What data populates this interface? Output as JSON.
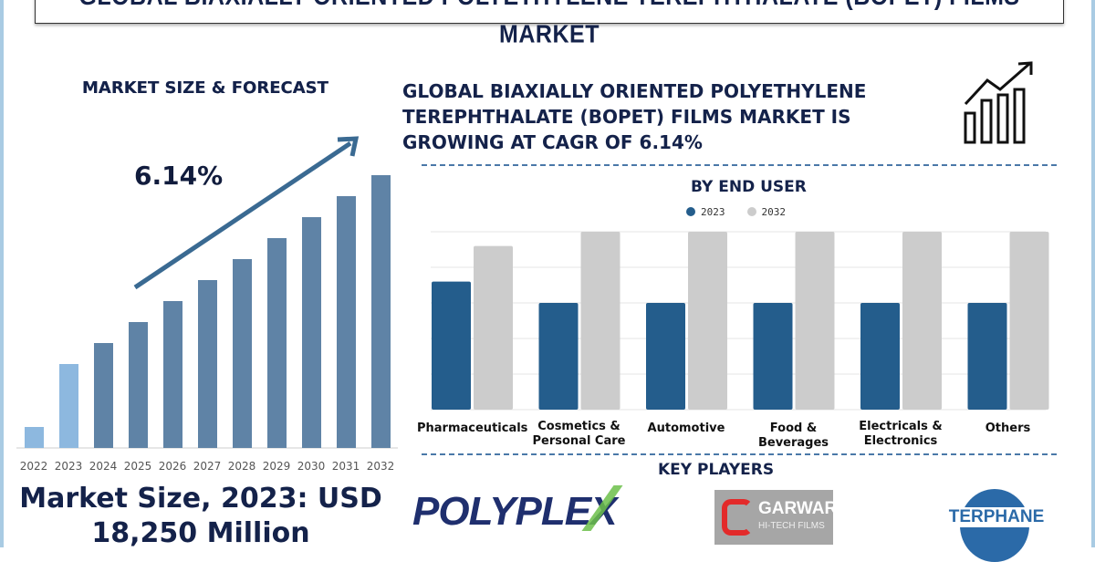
{
  "title": "GLOBAL BIAXIALLY ORIENTED POLYETHYLENE TEREPHTHALATE (BOPET) FILMS MARKET",
  "left": {
    "heading": "MARKET SIZE & FORECAST",
    "cagr": "6.14%",
    "market_size": "Market Size, 2023: USD 18,250 Million"
  },
  "headline": "GLOBAL BIAXIALLY ORIENTED POLYETHYLENE TEREPHTHALATE (BOPET) FILMS MARKET IS GROWING AT CAGR OF 6.14%",
  "key_players": {
    "heading": "KEY PLAYERS",
    "logos": [
      "POLYPLEX",
      "GARWARE",
      "HI-TECH FILMS",
      "TERPHANE"
    ]
  },
  "chart_data": [
    {
      "type": "bar",
      "title": "MARKET SIZE & FORECAST",
      "categories": [
        "2022",
        "2023",
        "2024",
        "2025",
        "2026",
        "2027",
        "2028",
        "2029",
        "2030",
        "2031",
        "2032"
      ],
      "values": [
        23,
        92,
        115,
        138,
        161,
        184,
        207,
        230,
        253,
        276,
        299
      ],
      "colors": [
        "#8db8df",
        "#8db8df",
        "#5f83a6",
        "#5f83a6",
        "#5f83a6",
        "#5f83a6",
        "#5f83a6",
        "#5f83a6",
        "#5f83a6",
        "#5f83a6",
        "#5f83a6"
      ],
      "annotation": "6.14%",
      "grid": false
    },
    {
      "type": "bar",
      "title": "BY END USER",
      "categories": [
        "Pharmaceuticals",
        "Cosmetics & Personal Care",
        "Automotive",
        "Food & Beverages",
        "Electricals & Electronics",
        "Others"
      ],
      "series": [
        {
          "name": "2023",
          "color": "#245d8c",
          "values": [
            3.6,
            3,
            3,
            3,
            3,
            3
          ]
        },
        {
          "name": "2032",
          "color": "#cccccc",
          "values": [
            4.6,
            5,
            5,
            5,
            5,
            5
          ]
        }
      ],
      "ylim": [
        0,
        5
      ],
      "grid": true,
      "legend": "top"
    }
  ]
}
